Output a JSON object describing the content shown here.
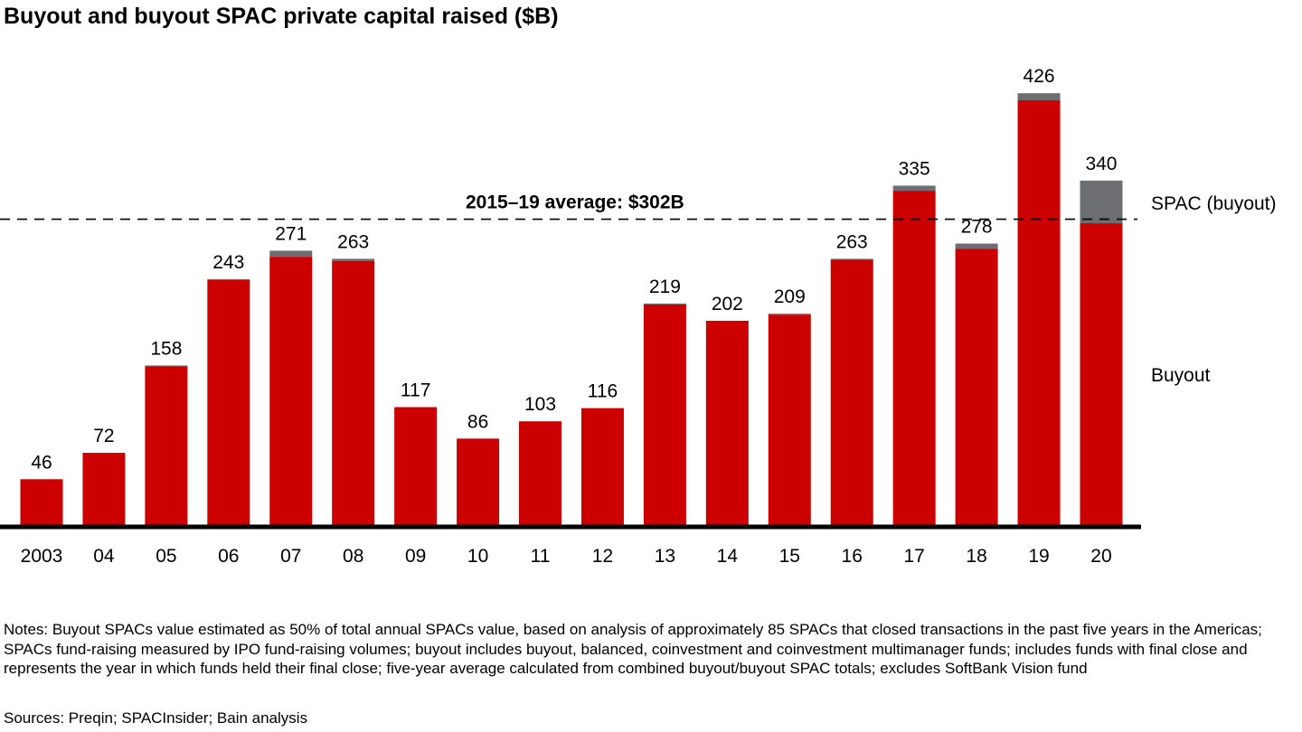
{
  "chart_data": {
    "type": "bar",
    "stacked": true,
    "title": "Buyout and buyout SPAC private capital raised ($B)",
    "categories": [
      "2003",
      "04",
      "05",
      "06",
      "07",
      "08",
      "09",
      "10",
      "11",
      "12",
      "13",
      "14",
      "15",
      "16",
      "17",
      "18",
      "19",
      "20"
    ],
    "totals": [
      46,
      72,
      158,
      243,
      271,
      263,
      117,
      86,
      103,
      116,
      219,
      202,
      209,
      263,
      335,
      278,
      426,
      340
    ],
    "series": [
      {
        "name": "Buyout",
        "color": "#cc0000",
        "values": [
          46,
          72,
          157,
          242,
          265,
          261,
          117,
          86,
          103,
          116,
          218,
          202,
          208,
          262,
          330,
          273,
          419,
          298
        ]
      },
      {
        "name": "SPAC (buyout)",
        "color": "#6d6e71",
        "values": [
          0,
          0,
          1,
          1,
          6,
          2,
          0,
          0,
          0,
          0,
          1,
          0,
          1,
          1,
          5,
          5,
          7,
          42
        ]
      }
    ],
    "reference_line": {
      "label": "2015–19 average: $302B",
      "value": 302,
      "style": "dashed"
    },
    "ylim": [
      0,
      440
    ],
    "grid": false,
    "legend": "right"
  },
  "notes": "Notes: Buyout SPACs value estimated as 50% of total annual SPACs value, based on analysis of approximately 85 SPACs that closed transactions in the past five years in the Americas; SPACs fund-raising measured by IPO fund-raising volumes; buyout includes buyout, balanced, coinvestment and coinvestment multimanager funds; includes funds with final close and represents the year in which funds held their final close; five-year average calculated from combined buyout/buyout SPAC totals; excludes SoftBank Vision fund",
  "sources": "Sources: Preqin; SPACInsider; Bain analysis"
}
